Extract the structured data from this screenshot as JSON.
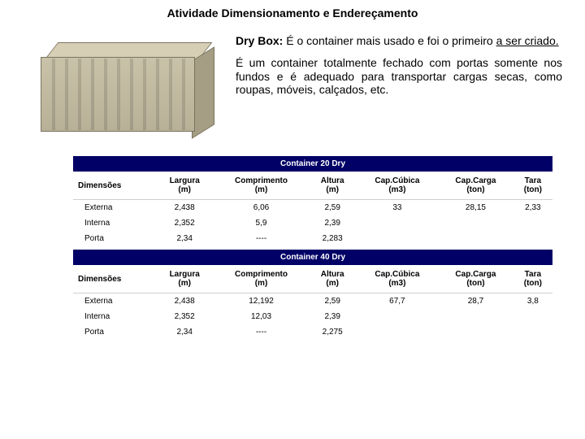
{
  "title": "Atividade Dimensionamento e Endereçamento",
  "intro": {
    "lead_bold": "Dry Box:",
    "lead_rest": " É o container mais usado e foi o primeiro ",
    "lead_under": "a ser criado.",
    "para2": "É um container totalmente fechado com portas somente nos fundos e é adequado para transportar cargas secas, como roupas, móveis, calçados, etc."
  },
  "headers": {
    "dim": "Dimensões",
    "largura": "Largura",
    "largura_u": "(m)",
    "comp": "Comprimento",
    "comp_u": "(m)",
    "altura": "Altura",
    "altura_u": "(m)",
    "cubica": "Cap.Cúbica",
    "cubica_u": "(m3)",
    "carga": "Cap.Carga",
    "carga_u": "(ton)",
    "tara": "Tara",
    "tara_u": "(ton)"
  },
  "table20": {
    "banner": "Container 20 Dry",
    "rows": [
      {
        "label": "Externa",
        "largura": "2,438",
        "comp": "6,06",
        "altura": "2,59",
        "cubica": "33",
        "carga": "28,15",
        "tara": "2,33"
      },
      {
        "label": "Interna",
        "largura": "2,352",
        "comp": "5,9",
        "altura": "2,39",
        "cubica": "",
        "carga": "",
        "tara": ""
      },
      {
        "label": "Porta",
        "largura": "2,34",
        "comp": "----",
        "altura": "2,283",
        "cubica": "",
        "carga": "",
        "tara": ""
      }
    ]
  },
  "table40": {
    "banner": "Container 40 Dry",
    "rows": [
      {
        "label": "Externa",
        "largura": "2,438",
        "comp": "12,192",
        "altura": "2,59",
        "cubica": "67,7",
        "carga": "28,7",
        "tara": "3,8"
      },
      {
        "label": "Interna",
        "largura": "2,352",
        "comp": "12,03",
        "altura": "2,39",
        "cubica": "",
        "carga": "",
        "tara": ""
      },
      {
        "label": "Porta",
        "largura": "2,34",
        "comp": "----",
        "altura": "2,275",
        "cubica": "",
        "carga": "",
        "tara": ""
      }
    ]
  },
  "colors": {
    "banner_bg": "#000066",
    "banner_fg": "#ffffff",
    "header_rule": "#cfcfcf",
    "container_body": "#c9c2a8"
  }
}
